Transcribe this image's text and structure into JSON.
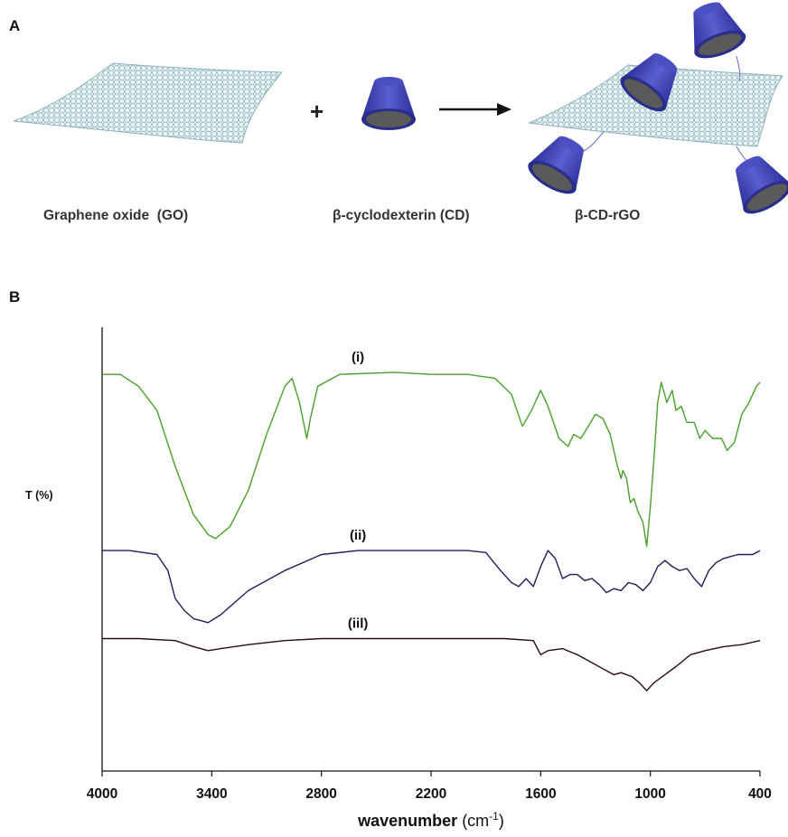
{
  "figure": {
    "panel_a_label": "A",
    "panel_b_label": "B"
  },
  "scheme": {
    "plus": "+",
    "go_label": "Graphene oxide  (GO)",
    "cd_label": "β-cyclodexterin (CD)",
    "product_label": "β-CD-rGO",
    "colors": {
      "sheet": "#8fb3bd",
      "cone": "#3b3fa8",
      "cone_rim": "#2a2d8a",
      "cavity": "#555555",
      "arrow": "#111111"
    }
  },
  "chart_data": {
    "type": "line",
    "xlabel": "wavenumber",
    "xlabel_unit_base": "(cm",
    "xlabel_unit_sup": "-1",
    "xlabel_unit_close": ")",
    "ylabel": "T (%)",
    "xlim": [
      4000,
      400
    ],
    "x_reversed": true,
    "xticks": [
      "4000",
      "3400",
      "2800",
      "2200",
      "1600",
      "1000",
      "400"
    ],
    "xtick_values": [
      4000,
      3400,
      2800,
      2200,
      1600,
      1000,
      400
    ],
    "ylim": [
      0,
      100
    ],
    "grid": false,
    "series": [
      {
        "label": "(i)",
        "color": "#4aa02c",
        "points": [
          [
            4000,
            95
          ],
          [
            3900,
            95
          ],
          [
            3800,
            92
          ],
          [
            3700,
            86
          ],
          [
            3600,
            72
          ],
          [
            3500,
            60
          ],
          [
            3420,
            55
          ],
          [
            3380,
            54
          ],
          [
            3300,
            57
          ],
          [
            3200,
            66
          ],
          [
            3100,
            80
          ],
          [
            3000,
            92
          ],
          [
            2960,
            94
          ],
          [
            2920,
            88
          ],
          [
            2880,
            79
          ],
          [
            2860,
            84
          ],
          [
            2820,
            92
          ],
          [
            2700,
            95
          ],
          [
            2400,
            95.5
          ],
          [
            2200,
            95
          ],
          [
            2000,
            95
          ],
          [
            1850,
            94
          ],
          [
            1760,
            90
          ],
          [
            1700,
            82
          ],
          [
            1650,
            86
          ],
          [
            1600,
            91
          ],
          [
            1560,
            87
          ],
          [
            1500,
            79
          ],
          [
            1450,
            77
          ],
          [
            1420,
            80
          ],
          [
            1380,
            79
          ],
          [
            1340,
            82
          ],
          [
            1300,
            85
          ],
          [
            1260,
            84
          ],
          [
            1220,
            80
          ],
          [
            1180,
            72
          ],
          [
            1160,
            69
          ],
          [
            1150,
            71
          ],
          [
            1130,
            69
          ],
          [
            1110,
            63
          ],
          [
            1090,
            64
          ],
          [
            1070,
            61
          ],
          [
            1040,
            58
          ],
          [
            1020,
            52
          ],
          [
            1000,
            62
          ],
          [
            980,
            74
          ],
          [
            960,
            88
          ],
          [
            940,
            93
          ],
          [
            910,
            88
          ],
          [
            880,
            91
          ],
          [
            860,
            86
          ],
          [
            830,
            87
          ],
          [
            800,
            83
          ],
          [
            760,
            83
          ],
          [
            730,
            79
          ],
          [
            700,
            81
          ],
          [
            660,
            79
          ],
          [
            610,
            79
          ],
          [
            580,
            76
          ],
          [
            540,
            78
          ],
          [
            500,
            85
          ],
          [
            460,
            88
          ],
          [
            420,
            92
          ],
          [
            400,
            93
          ]
        ]
      },
      {
        "label": "(ii)",
        "color": "#1f1f5e",
        "points": [
          [
            4000,
            51
          ],
          [
            3850,
            51
          ],
          [
            3700,
            50
          ],
          [
            3640,
            46
          ],
          [
            3600,
            39
          ],
          [
            3550,
            36
          ],
          [
            3500,
            34
          ],
          [
            3420,
            33
          ],
          [
            3350,
            35
          ],
          [
            3200,
            41
          ],
          [
            3000,
            46
          ],
          [
            2800,
            50
          ],
          [
            2600,
            51
          ],
          [
            2400,
            51
          ],
          [
            2200,
            51
          ],
          [
            2000,
            51
          ],
          [
            1900,
            50.5
          ],
          [
            1820,
            46
          ],
          [
            1760,
            43
          ],
          [
            1720,
            42
          ],
          [
            1680,
            44
          ],
          [
            1640,
            42
          ],
          [
            1600,
            47
          ],
          [
            1560,
            51
          ],
          [
            1520,
            49
          ],
          [
            1480,
            44
          ],
          [
            1440,
            45
          ],
          [
            1400,
            45
          ],
          [
            1360,
            43.5
          ],
          [
            1320,
            44
          ],
          [
            1280,
            42.5
          ],
          [
            1240,
            40.5
          ],
          [
            1200,
            41.5
          ],
          [
            1160,
            41
          ],
          [
            1120,
            43
          ],
          [
            1080,
            42.5
          ],
          [
            1040,
            41
          ],
          [
            1000,
            43
          ],
          [
            960,
            47
          ],
          [
            920,
            48.5
          ],
          [
            880,
            47
          ],
          [
            840,
            46
          ],
          [
            800,
            46.5
          ],
          [
            760,
            44
          ],
          [
            720,
            42
          ],
          [
            680,
            46
          ],
          [
            640,
            48
          ],
          [
            600,
            49
          ],
          [
            560,
            49.5
          ],
          [
            520,
            50
          ],
          [
            480,
            50
          ],
          [
            440,
            50
          ],
          [
            400,
            51
          ]
        ]
      },
      {
        "label": "(iil)",
        "color": "#2a0a14",
        "points": [
          [
            4000,
            29
          ],
          [
            3800,
            29
          ],
          [
            3600,
            28.5
          ],
          [
            3500,
            27
          ],
          [
            3420,
            26
          ],
          [
            3350,
            26.5
          ],
          [
            3200,
            27.5
          ],
          [
            3000,
            28.5
          ],
          [
            2800,
            29
          ],
          [
            2400,
            29
          ],
          [
            2000,
            29
          ],
          [
            1800,
            29
          ],
          [
            1640,
            28.5
          ],
          [
            1600,
            25
          ],
          [
            1560,
            26
          ],
          [
            1480,
            26.5
          ],
          [
            1400,
            25
          ],
          [
            1320,
            23
          ],
          [
            1260,
            21.5
          ],
          [
            1200,
            20
          ],
          [
            1160,
            20.5
          ],
          [
            1100,
            19.5
          ],
          [
            1060,
            18
          ],
          [
            1020,
            16
          ],
          [
            980,
            18
          ],
          [
            920,
            20
          ],
          [
            860,
            22
          ],
          [
            780,
            25
          ],
          [
            700,
            26
          ],
          [
            600,
            27
          ],
          [
            500,
            27.5
          ],
          [
            400,
            28.5
          ]
        ]
      }
    ]
  }
}
